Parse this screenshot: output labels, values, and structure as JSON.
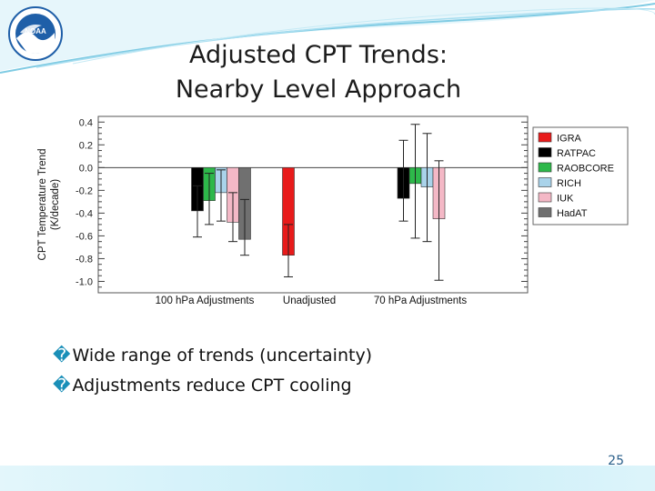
{
  "slide": {
    "title_lines": [
      "Adjusted CPT Trends:",
      "Nearby Level Approach"
    ],
    "bullets": [
      "Wide range of trends (uncertainty)",
      "Adjustments reduce CPT cooling"
    ],
    "bullet_glyph": "�",
    "page_number": "25",
    "logo_text": "NOAA",
    "colors": {
      "accent": "#1a8fb8",
      "band": "#bfe9f5",
      "logo_blue": "#1f5fa8"
    }
  },
  "chart_data": {
    "type": "bar",
    "title": "",
    "xlabel": "",
    "ylabel": "CPT Temperature Trend (K/decade)",
    "ylabel_lines": [
      "CPT Temperature Trend",
      "(K/decade)"
    ],
    "ylim": [
      -1.1,
      0.45
    ],
    "yticks": [
      0.4,
      0.2,
      0.0,
      -0.2,
      -0.4,
      -0.6,
      -0.8,
      -1.0
    ],
    "ytick_labels": [
      "0.4",
      "0.2",
      "0.0",
      "-0.2",
      "-0.4",
      "-0.6",
      "-0.8",
      "-1.0"
    ],
    "categories": [
      "100 hPa Adjustments",
      "Unadjusted",
      "70 hPa Adjustments"
    ],
    "legend_position": "right",
    "series": [
      {
        "name": "IGRA",
        "color": "#e81b1b",
        "values": [
          null,
          -0.77,
          null
        ],
        "err_low": [
          null,
          -0.96,
          null
        ],
        "err_high": [
          null,
          -0.5,
          null
        ]
      },
      {
        "name": "RATPAC",
        "color": "#000000",
        "values": [
          -0.38,
          null,
          -0.27
        ],
        "err_low": [
          -0.61,
          null,
          -0.47
        ],
        "err_high": [
          -0.16,
          null,
          0.24
        ]
      },
      {
        "name": "RAOBCORE",
        "color": "#2db84a",
        "values": [
          -0.29,
          null,
          -0.14
        ],
        "err_low": [
          -0.5,
          null,
          -0.62
        ],
        "err_high": [
          -0.05,
          null,
          0.38
        ]
      },
      {
        "name": "RICH",
        "color": "#a9d3ea",
        "values": [
          -0.22,
          null,
          -0.17
        ],
        "err_low": [
          -0.47,
          null,
          -0.65
        ],
        "err_high": [
          -0.02,
          null,
          0.3
        ]
      },
      {
        "name": "IUK",
        "color": "#f4b8c6",
        "values": [
          -0.48,
          null,
          -0.45
        ],
        "err_low": [
          -0.65,
          null,
          -0.99
        ],
        "err_high": [
          -0.22,
          null,
          0.06
        ]
      },
      {
        "name": "HadAT",
        "color": "#707070",
        "values": [
          -0.63,
          null,
          null
        ],
        "err_low": [
          -0.77,
          null,
          null
        ],
        "err_high": [
          -0.28,
          null,
          null
        ]
      }
    ]
  }
}
